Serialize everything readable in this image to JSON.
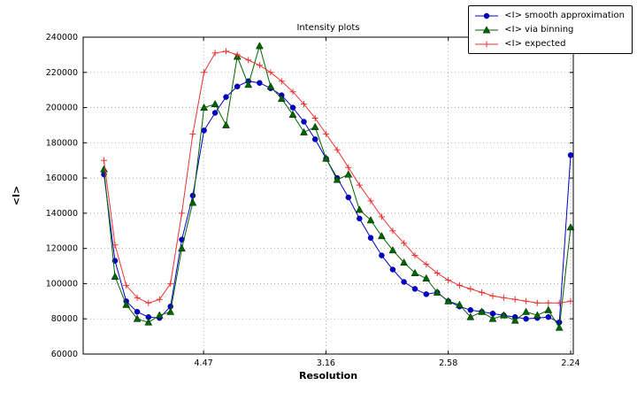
{
  "chart_data": {
    "type": "line",
    "title": "Intensity plots",
    "xlabel": "Resolution",
    "ylabel": "<I>",
    "grid": {
      "show": true,
      "style": "dotted"
    },
    "legend": {
      "position": "upper-right outside axes"
    },
    "x_axis": {
      "min": 0.0008,
      "max": 0.2011,
      "ticks": [
        {
          "value": 0.05,
          "label": "4.47"
        },
        {
          "value": 0.1,
          "label": "3.16"
        },
        {
          "value": 0.15,
          "label": "2.58"
        },
        {
          "value": 0.2,
          "label": "2.24"
        }
      ]
    },
    "y_axis": {
      "min": 60000,
      "max": 240000,
      "ticks": [
        60000,
        80000,
        100000,
        120000,
        140000,
        160000,
        180000,
        200000,
        220000,
        240000
      ],
      "tick_labels": [
        "60000",
        "80000",
        "100000",
        "120000",
        "140000",
        "160000",
        "180000",
        "200000",
        "220000",
        "240000"
      ]
    },
    "x": [
      0.0093,
      0.0138,
      0.0184,
      0.0229,
      0.0275,
      0.032,
      0.0365,
      0.0411,
      0.0456,
      0.0502,
      0.0547,
      0.0592,
      0.0638,
      0.0683,
      0.0729,
      0.0774,
      0.0819,
      0.0865,
      0.091,
      0.0956,
      0.1001,
      0.1046,
      0.1092,
      0.1137,
      0.1183,
      0.1228,
      0.1273,
      0.1319,
      0.1364,
      0.141,
      0.1455,
      0.15,
      0.1546,
      0.1591,
      0.1637,
      0.1682,
      0.1727,
      0.1773,
      0.1818,
      0.1864,
      0.1909,
      0.1954,
      0.2
    ],
    "series": [
      {
        "name": "<I> smooth approximation",
        "color": "#0000cd",
        "marker": "circle",
        "values": [
          162000,
          113000,
          90000,
          84000,
          81000,
          80500,
          87000,
          125000,
          150000,
          187000,
          197000,
          206000,
          212000,
          215000,
          214000,
          211000,
          207000,
          200000,
          192000,
          182000,
          171000,
          160000,
          149000,
          137000,
          126000,
          116000,
          108000,
          101000,
          97000,
          94000,
          95000,
          90000,
          87000,
          85000,
          84000,
          83000,
          82000,
          81000,
          80000,
          80500,
          81000,
          78000,
          173000
        ]
      },
      {
        "name": "<I> via binning",
        "color": "#006400",
        "marker": "triangle",
        "values": [
          165000,
          104000,
          88000,
          80000,
          78000,
          82000,
          84000,
          120000,
          146000,
          200000,
          202000,
          190000,
          229000,
          213000,
          235000,
          212000,
          205000,
          196000,
          186000,
          189000,
          171000,
          159000,
          162000,
          142000,
          136000,
          127000,
          119000,
          112000,
          106000,
          103000,
          95000,
          90000,
          88000,
          81000,
          84000,
          80000,
          82000,
          79000,
          84000,
          82000,
          85000,
          75000,
          132000
        ]
      },
      {
        "name": "<I> expected",
        "color": "#ee3030",
        "marker": "plus",
        "values": [
          170000,
          122000,
          99000,
          92000,
          89000,
          91000,
          100000,
          140000,
          185000,
          220000,
          231000,
          232000,
          230000,
          227000,
          224000,
          220000,
          215000,
          209000,
          202000,
          194000,
          185000,
          176000,
          166000,
          156000,
          147000,
          138000,
          130000,
          123000,
          116000,
          111000,
          106000,
          102000,
          99000,
          97000,
          95000,
          93000,
          92000,
          91000,
          90000,
          89000,
          89000,
          89000,
          90000
        ]
      }
    ]
  }
}
